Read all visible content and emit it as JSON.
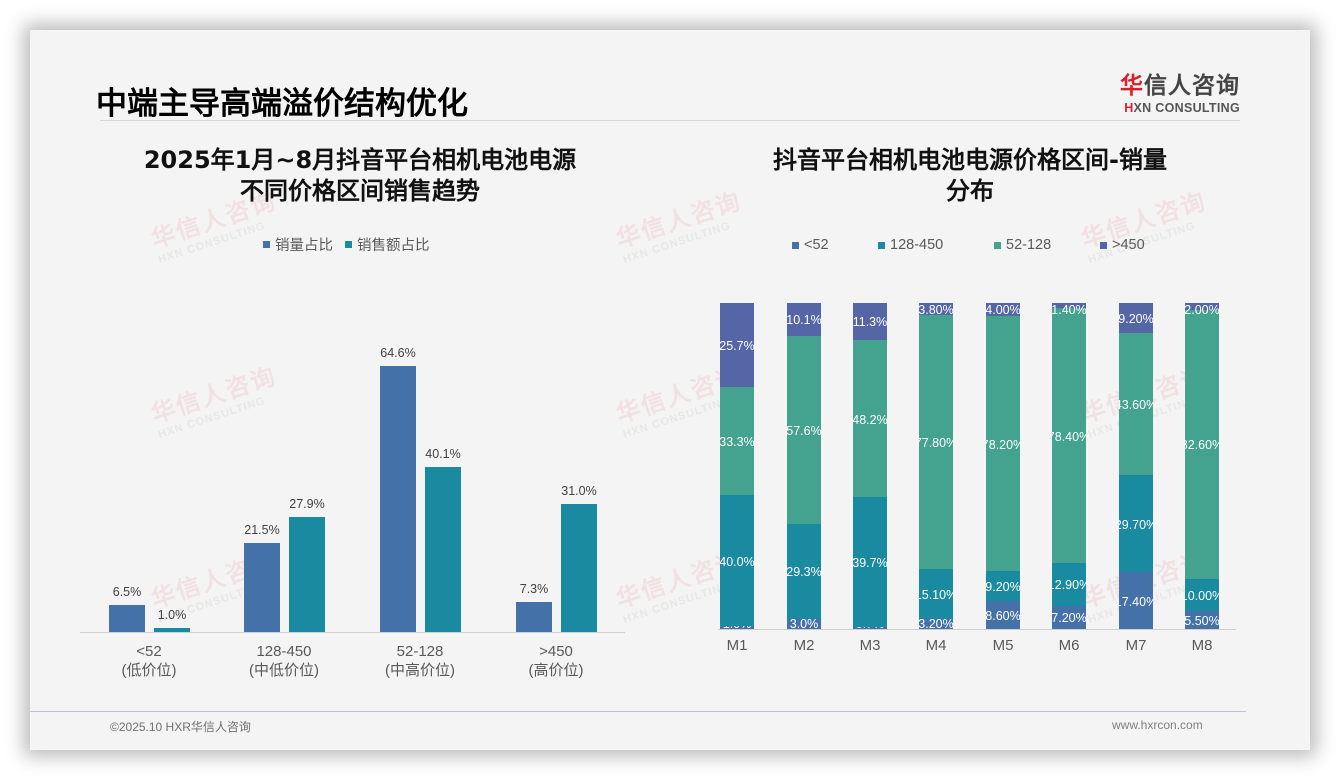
{
  "header": {
    "title": "中端主导高端溢价结构优化",
    "logo_cn_accent": "华",
    "logo_cn_rest": "信人咨询",
    "logo_en_accent": "H",
    "logo_en_rest": "XN CONSULTING"
  },
  "watermark": {
    "cn": "华信人咨询",
    "en": "HXN CONSULTING"
  },
  "colors": {
    "blue": "#4472a8",
    "teal": "#1a8aa0",
    "green": "#44a38e",
    "indigo": "#5566a6",
    "accent_red": "#d6202a"
  },
  "left_chart": {
    "title_line1": "2025年1月~8月抖音平台相机电池电源",
    "title_line2": "不同价格区间销售趋势",
    "legend": [
      {
        "label": "销量占比",
        "color": "#4472a8"
      },
      {
        "label": "销售额占比",
        "color": "#1a8aa0"
      }
    ],
    "categories": [
      {
        "range": "<52",
        "tier": "(低价位)"
      },
      {
        "range": "128-450",
        "tier": "(中低价位)"
      },
      {
        "range": "52-128",
        "tier": "(中高价位)"
      },
      {
        "range": ">450",
        "tier": "(高价位)"
      }
    ],
    "volume_labels": [
      "6.5%",
      "21.5%",
      "64.6%",
      "7.3%"
    ],
    "sales_labels": [
      "1.0%",
      "27.9%",
      "40.1%",
      "31.0%"
    ]
  },
  "right_chart": {
    "title_line1": "抖音平台相机电池电源价格区间-销量",
    "title_line2": "分布",
    "legend": [
      {
        "label": "<52",
        "color": "#4472a8"
      },
      {
        "label": "128-450",
        "color": "#1a8aa0"
      },
      {
        "label": "52-128",
        "color": "#44a38e"
      },
      {
        "label": ">450",
        "color": "#5566a6"
      }
    ],
    "months": [
      "M1",
      "M2",
      "M3",
      "M4",
      "M5",
      "M6",
      "M7",
      "M8"
    ],
    "segment_labels": {
      "lt52": [
        "1.0%",
        "3.0%",
        "0.7%",
        "3.20%",
        "8.60%",
        "7.20%",
        "17.40%",
        "5.50%"
      ],
      "r128_450": [
        "40.0%",
        "29.3%",
        "39.7%",
        "15.10%",
        "9.20%",
        "12.90%",
        "29.70%",
        "10.00%"
      ],
      "r52_128": [
        "33.3%",
        "57.6%",
        "48.2%",
        "77.80%",
        "78.20%",
        "78.40%",
        "43.60%",
        "82.60%"
      ],
      "gt450": [
        "25.7%",
        "10.1%",
        "11.3%",
        "3.80%",
        "4.00%",
        "1.40%",
        "9.20%",
        "2.00%"
      ]
    }
  },
  "footer": {
    "copyright": "©2025.10 HXR华信人咨询",
    "website": "www.hxrcon.com"
  },
  "chart_data": [
    {
      "type": "bar",
      "title": "2025年1月~8月抖音平台相机电池电源不同价格区间销售趋势",
      "categories": [
        "<52 (低价位)",
        "128-450 (中低价位)",
        "52-128 (中高价位)",
        ">450 (高价位)"
      ],
      "series": [
        {
          "name": "销量占比",
          "values": [
            6.5,
            21.5,
            64.6,
            7.3
          ]
        },
        {
          "name": "销售额占比",
          "values": [
            1.0,
            27.9,
            40.1,
            31.0
          ]
        }
      ],
      "xlabel": "",
      "ylabel": "",
      "unit": "%",
      "grid": false,
      "legend_position": "top",
      "ylim": [
        0,
        70
      ]
    },
    {
      "type": "bar",
      "stacked": true,
      "percent_stacked": true,
      "title": "抖音平台相机电池电源价格区间-销量分布",
      "categories": [
        "M1",
        "M2",
        "M3",
        "M4",
        "M5",
        "M6",
        "M7",
        "M8"
      ],
      "series": [
        {
          "name": "<52",
          "values": [
            1.0,
            3.0,
            0.7,
            3.2,
            8.6,
            7.2,
            17.4,
            5.5
          ]
        },
        {
          "name": "128-450",
          "values": [
            40.0,
            29.3,
            39.7,
            15.1,
            9.2,
            12.9,
            29.7,
            10.0
          ]
        },
        {
          "name": "52-128",
          "values": [
            33.3,
            57.6,
            48.2,
            77.8,
            78.2,
            78.4,
            43.6,
            82.6
          ]
        },
        {
          "name": ">450",
          "values": [
            25.7,
            10.1,
            11.3,
            3.8,
            4.0,
            1.4,
            9.2,
            2.0
          ]
        }
      ],
      "xlabel": "",
      "ylabel": "",
      "unit": "%",
      "grid": false,
      "legend_position": "top",
      "ylim": [
        0,
        100
      ]
    }
  ]
}
